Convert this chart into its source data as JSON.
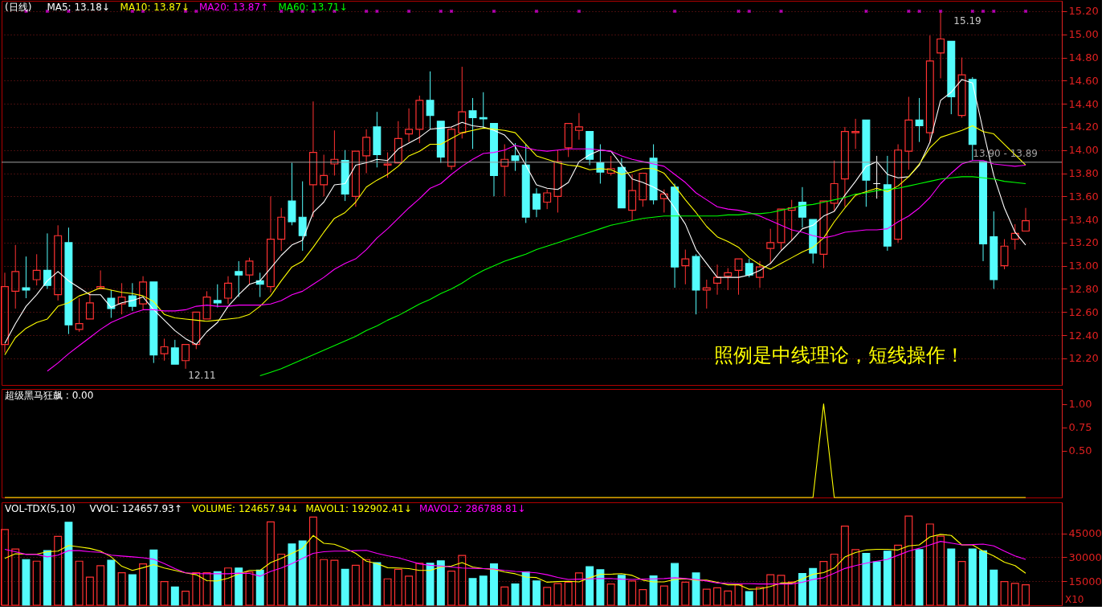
{
  "chart_data": [
    {
      "type": "candlestick",
      "title": "(日线)",
      "categories": [
        null,
        null,
        null,
        null,
        null,
        null,
        null,
        null,
        null,
        null,
        null,
        null,
        null,
        null,
        null,
        null,
        null,
        null,
        null,
        null,
        null,
        null,
        null,
        null,
        null,
        null,
        null,
        null,
        null,
        null,
        null,
        null,
        null,
        null,
        null,
        null,
        null,
        null,
        null,
        null,
        null,
        null,
        null,
        null,
        null,
        null,
        null,
        null,
        null,
        null,
        null,
        null,
        null,
        null,
        null,
        null,
        null,
        null,
        null,
        null,
        null,
        null,
        null,
        null,
        null,
        null,
        null,
        null,
        null,
        null,
        null,
        null,
        null,
        null,
        null,
        null,
        null,
        null,
        null,
        null,
        null,
        null,
        null,
        null,
        null,
        null,
        null,
        null,
        null,
        null,
        null,
        null,
        null,
        null,
        null,
        null,
        null
      ],
      "ohlc": [
        [
          12.32,
          12.94,
          12.25,
          12.82
        ],
        [
          12.78,
          13.18,
          12.63,
          12.95
        ],
        [
          12.81,
          13.08,
          12.72,
          12.79
        ],
        [
          12.88,
          13.1,
          12.83,
          12.96
        ],
        [
          12.96,
          13.28,
          12.8,
          12.83
        ],
        [
          12.75,
          13.35,
          12.7,
          13.26
        ],
        [
          13.2,
          13.33,
          12.41,
          12.49
        ],
        [
          12.45,
          12.72,
          12.43,
          12.5
        ],
        [
          12.54,
          12.77,
          12.54,
          12.68
        ],
        [
          12.8,
          12.96,
          12.8,
          12.82
        ],
        [
          12.72,
          12.79,
          12.55,
          12.63
        ],
        [
          12.67,
          12.85,
          12.58,
          12.73
        ],
        [
          12.74,
          12.85,
          12.61,
          12.65
        ],
        [
          12.67,
          12.91,
          12.62,
          12.86
        ],
        [
          12.86,
          12.86,
          12.16,
          12.23
        ],
        [
          12.24,
          12.37,
          12.18,
          12.3
        ],
        [
          12.29,
          12.36,
          12.15,
          12.15
        ],
        [
          12.18,
          12.32,
          12.11,
          12.32
        ],
        [
          12.32,
          12.6,
          12.28,
          12.6
        ],
        [
          12.54,
          12.78,
          12.53,
          12.73
        ],
        [
          12.7,
          12.84,
          12.64,
          12.68
        ],
        [
          12.72,
          12.91,
          12.67,
          12.85
        ],
        [
          12.95,
          13.04,
          12.73,
          12.92
        ],
        [
          12.92,
          13.07,
          12.84,
          13.04
        ],
        [
          12.87,
          12.94,
          12.73,
          12.84
        ],
        [
          12.82,
          13.6,
          12.77,
          13.23
        ],
        [
          13.23,
          13.5,
          13.13,
          13.42
        ],
        [
          13.56,
          13.89,
          13.35,
          13.38
        ],
        [
          13.42,
          13.73,
          13.13,
          13.26
        ],
        [
          13.7,
          14.42,
          13.42,
          13.98
        ],
        [
          13.7,
          13.96,
          13.6,
          13.78
        ],
        [
          13.88,
          14.17,
          13.78,
          13.92
        ],
        [
          13.91,
          14.0,
          13.56,
          13.62
        ],
        [
          13.6,
          13.99,
          13.51,
          13.99
        ],
        [
          13.95,
          14.18,
          13.8,
          14.11
        ],
        [
          14.2,
          14.33,
          13.85,
          13.96
        ],
        [
          13.87,
          13.98,
          13.76,
          13.88
        ],
        [
          13.89,
          14.25,
          13.89,
          14.1
        ],
        [
          14.14,
          14.36,
          14.07,
          14.18
        ],
        [
          14.18,
          14.47,
          14.06,
          14.43
        ],
        [
          14.43,
          14.68,
          14.18,
          14.3
        ],
        [
          14.25,
          14.25,
          13.89,
          13.94
        ],
        [
          13.86,
          14.2,
          13.83,
          14.18
        ],
        [
          14.15,
          14.72,
          14.1,
          14.33
        ],
        [
          14.34,
          14.45,
          14.01,
          14.28
        ],
        [
          14.28,
          14.5,
          14.19,
          14.27
        ],
        [
          14.23,
          14.23,
          13.6,
          13.78
        ],
        [
          13.86,
          14.05,
          13.6,
          13.92
        ],
        [
          13.95,
          14.06,
          13.82,
          13.91
        ],
        [
          13.87,
          14.05,
          13.37,
          13.42
        ],
        [
          13.62,
          13.67,
          13.42,
          13.49
        ],
        [
          13.55,
          13.66,
          13.49,
          13.63
        ],
        [
          13.6,
          14.0,
          13.46,
          13.9
        ],
        [
          14.02,
          14.23,
          13.94,
          14.23
        ],
        [
          14.17,
          14.32,
          14.09,
          14.2
        ],
        [
          14.16,
          14.16,
          13.87,
          13.92
        ],
        [
          13.89,
          14.05,
          13.71,
          13.81
        ],
        [
          13.8,
          13.95,
          13.78,
          13.84
        ],
        [
          13.85,
          13.93,
          13.49,
          13.5
        ],
        [
          13.48,
          13.79,
          13.39,
          13.65
        ],
        [
          13.57,
          13.8,
          13.51,
          13.8
        ],
        [
          13.93,
          14.05,
          13.53,
          13.57
        ],
        [
          13.58,
          13.66,
          13.46,
          13.62
        ],
        [
          13.68,
          13.71,
          12.81,
          12.99
        ],
        [
          13.0,
          13.14,
          12.84,
          13.06
        ],
        [
          13.08,
          13.1,
          12.58,
          12.79
        ],
        [
          12.79,
          12.88,
          12.63,
          12.81
        ],
        [
          12.85,
          13.01,
          12.75,
          12.9
        ],
        [
          12.91,
          12.98,
          12.79,
          12.94
        ],
        [
          12.96,
          13.06,
          12.75,
          13.06
        ],
        [
          13.02,
          13.06,
          12.9,
          12.92
        ],
        [
          12.9,
          13.04,
          12.81,
          12.99
        ],
        [
          13.15,
          13.32,
          13.02,
          13.2
        ],
        [
          13.2,
          13.49,
          13.14,
          13.49
        ],
        [
          13.48,
          13.57,
          13.22,
          13.5
        ],
        [
          13.55,
          13.68,
          13.33,
          13.42
        ],
        [
          13.4,
          13.41,
          13.02,
          13.11
        ],
        [
          13.1,
          13.57,
          12.98,
          13.56
        ],
        [
          13.54,
          13.91,
          13.47,
          13.71
        ],
        [
          13.75,
          14.2,
          13.51,
          14.16
        ],
        [
          14.15,
          14.27,
          14.01,
          14.16
        ],
        [
          14.26,
          14.26,
          13.51,
          13.74
        ],
        [
          13.71,
          13.95,
          13.58,
          13.71
        ],
        [
          13.7,
          13.95,
          13.13,
          13.17
        ],
        [
          13.23,
          14.05,
          13.2,
          14.0
        ],
        [
          13.99,
          14.46,
          13.83,
          14.26
        ],
        [
          14.26,
          14.45,
          14.07,
          14.21
        ],
        [
          14.15,
          14.99,
          14.06,
          14.77
        ],
        [
          14.84,
          15.19,
          14.62,
          14.96
        ],
        [
          14.94,
          14.94,
          14.31,
          14.46
        ],
        [
          14.3,
          14.8,
          14.28,
          14.65
        ],
        [
          14.61,
          14.63,
          13.91,
          14.05
        ],
        [
          13.9,
          13.9,
          13.04,
          13.19
        ],
        [
          13.25,
          13.47,
          12.8,
          12.88
        ],
        [
          13.0,
          13.23,
          12.97,
          13.17
        ],
        [
          13.23,
          13.36,
          13.14,
          13.28
        ],
        [
          13.3,
          13.5,
          13.29,
          13.39
        ]
      ],
      "colors": [
        "#ff3232",
        "#ff3232",
        "#54fcfc",
        "#ff3232",
        "#54fcfc",
        "#ff3232",
        "#54fcfc",
        "#ff3232",
        "#ff3232",
        "#ff3232",
        "#54fcfc",
        "#ff3232",
        "#54fcfc",
        "#ff3232",
        "#54fcfc",
        "#ff3232",
        "#54fcfc",
        "#ff3232",
        "#ff3232",
        "#ff3232",
        "#54fcfc",
        "#ff3232",
        "#54fcfc",
        "#ff3232",
        "#54fcfc",
        "#ff3232",
        "#ff3232",
        "#54fcfc",
        "#54fcfc",
        "#ff3232",
        "#ff3232",
        "#ff3232",
        "#54fcfc",
        "#ff3232",
        "#ff3232",
        "#54fcfc",
        "#ff3232",
        "#ff3232",
        "#ff3232",
        "#ff3232",
        "#54fcfc",
        "#54fcfc",
        "#ff3232",
        "#ff3232",
        "#54fcfc",
        "#54fcfc",
        "#54fcfc",
        "#ff3232",
        "#54fcfc",
        "#54fcfc",
        "#54fcfc",
        "#ff3232",
        "#ff3232",
        "#ff3232",
        "#ff3232",
        "#54fcfc",
        "#54fcfc",
        "#ff3232",
        "#54fcfc",
        "#ff3232",
        "#ff3232",
        "#54fcfc",
        "#ff3232",
        "#54fcfc",
        "#ff3232",
        "#54fcfc",
        "#ff3232",
        "#ff3232",
        "#ff3232",
        "#ff3232",
        "#54fcfc",
        "#ff3232",
        "#ff3232",
        "#ff3232",
        "#ff3232",
        "#54fcfc",
        "#54fcfc",
        "#ff3232",
        "#ff3232",
        "#ff3232",
        "#ff3232",
        "#54fcfc",
        "#ffffff",
        "#54fcfc",
        "#ff3232",
        "#ff3232",
        "#54fcfc",
        "#ff3232",
        "#ff3232",
        "#54fcfc",
        "#ff3232",
        "#54fcfc",
        "#54fcfc",
        "#54fcfc",
        "#ff3232",
        "#ff3232",
        "#ff3232"
      ],
      "series": [
        {
          "type": "line",
          "name": "MA5: 13.18↓",
          "color": "#ffffff",
          "values": [
            12.33,
            12.5,
            12.65,
            12.75,
            12.87,
            12.95,
            12.87,
            12.81,
            12.75,
            12.75,
            12.64,
            12.68,
            12.7,
            12.73,
            12.62,
            12.53,
            12.44,
            12.37,
            12.32,
            12.43,
            12.51,
            12.65,
            12.75,
            12.84,
            12.87,
            12.98,
            13.09,
            13.18,
            13.22,
            13.46,
            13.55,
            13.7,
            13.71,
            13.87,
            13.89,
            13.92,
            13.91,
            14.01,
            14.06,
            14.11,
            14.18,
            14.19,
            14.2,
            14.24,
            14.21,
            14.2,
            14.17,
            14.13,
            14.03,
            13.87,
            13.7,
            13.67,
            13.66,
            13.72,
            13.9,
            13.96,
            14.0,
            13.99,
            13.87,
            13.75,
            13.72,
            13.68,
            13.63,
            13.5,
            13.36,
            13.14,
            13.02,
            12.9,
            12.9,
            12.9,
            12.92,
            12.96,
            13.02,
            13.13,
            13.22,
            13.32,
            13.35,
            13.43,
            13.47,
            13.61,
            13.73,
            13.86,
            13.9,
            13.79,
            13.76,
            13.77,
            13.87,
            14.07,
            14.43,
            14.5,
            14.61,
            14.58,
            14.17,
            13.78,
            13.5,
            13.29,
            13.18
          ]
        },
        {
          "type": "line",
          "name": "MA10: 13.87↓",
          "color": "#ffff00",
          "values": [
            12.23,
            12.38,
            12.46,
            12.51,
            12.54,
            12.65,
            12.68,
            12.74,
            12.77,
            12.81,
            12.79,
            12.77,
            12.76,
            12.74,
            12.69,
            12.58,
            12.55,
            12.54,
            12.53,
            12.52,
            12.53,
            12.54,
            12.55,
            12.58,
            12.65,
            12.74,
            12.87,
            12.99,
            13.04,
            13.16,
            13.29,
            13.41,
            13.46,
            13.55,
            13.68,
            13.74,
            13.79,
            13.86,
            13.95,
            13.99,
            14.05,
            14.05,
            14.1,
            14.15,
            14.17,
            14.19,
            14.18,
            14.17,
            14.15,
            14.05,
            13.95,
            13.92,
            13.89,
            13.87,
            13.86,
            13.83,
            13.84,
            13.83,
            13.79,
            13.81,
            13.84,
            13.84,
            13.8,
            13.69,
            13.57,
            13.46,
            13.34,
            13.25,
            13.21,
            13.16,
            13.07,
            13.01,
            12.97,
            13.02,
            13.07,
            13.12,
            13.16,
            13.24,
            13.38,
            13.5,
            13.61,
            13.64,
            13.67,
            13.64,
            13.69,
            13.77,
            13.88,
            14.02,
            14.11,
            14.14,
            14.17,
            14.21,
            14.16,
            14.14,
            14.05,
            13.96,
            13.87
          ]
        },
        {
          "type": "line",
          "name": "MA20: 13.87↑",
          "color": "#ff00ff",
          "values": [
            null,
            null,
            null,
            null,
            12.09,
            12.16,
            12.24,
            12.31,
            12.38,
            12.45,
            12.51,
            12.55,
            12.59,
            12.62,
            12.62,
            12.61,
            12.61,
            12.62,
            12.65,
            12.66,
            12.65,
            12.65,
            12.66,
            12.66,
            12.66,
            12.67,
            12.7,
            12.75,
            12.78,
            12.84,
            12.9,
            12.97,
            13.02,
            13.06,
            13.14,
            13.24,
            13.32,
            13.41,
            13.5,
            13.58,
            13.67,
            13.71,
            13.79,
            13.86,
            13.92,
            13.97,
            13.98,
            14.0,
            14.04,
            14.02,
            14.0,
            13.99,
            14.0,
            14.01,
            14.01,
            14.01,
            14.0,
            13.99,
            13.95,
            13.92,
            13.9,
            13.88,
            13.86,
            13.79,
            13.72,
            13.63,
            13.57,
            13.51,
            13.49,
            13.48,
            13.46,
            13.43,
            13.39,
            13.35,
            13.31,
            13.29,
            13.26,
            13.24,
            13.26,
            13.29,
            13.3,
            13.31,
            13.31,
            13.32,
            13.38,
            13.43,
            13.5,
            13.59,
            13.71,
            13.8,
            13.88,
            13.91,
            13.91,
            13.88,
            13.87,
            13.86,
            13.87
          ]
        },
        {
          "type": "line",
          "name": "MA60: 13.71↓",
          "color": "#00ff00",
          "values": [
            null,
            null,
            null,
            null,
            null,
            null,
            null,
            null,
            null,
            null,
            null,
            null,
            null,
            null,
            null,
            null,
            null,
            null,
            null,
            null,
            null,
            null,
            null,
            null,
            12.05,
            12.08,
            12.11,
            12.15,
            12.19,
            12.23,
            12.27,
            12.31,
            12.35,
            12.39,
            12.44,
            12.48,
            12.53,
            12.57,
            12.62,
            12.67,
            12.71,
            12.76,
            12.8,
            12.85,
            12.91,
            12.96,
            13.0,
            13.04,
            13.07,
            13.1,
            13.14,
            13.17,
            13.2,
            13.23,
            13.26,
            13.29,
            13.32,
            13.35,
            13.37,
            13.39,
            13.41,
            13.42,
            13.43,
            13.43,
            13.43,
            13.43,
            13.43,
            13.43,
            13.44,
            13.44,
            13.45,
            13.45,
            13.46,
            13.48,
            13.5,
            13.52,
            13.53,
            13.55,
            13.57,
            13.59,
            13.62,
            13.63,
            13.65,
            13.66,
            13.67,
            13.69,
            13.71,
            13.73,
            13.75,
            13.76,
            13.77,
            13.77,
            13.76,
            13.75,
            13.73,
            13.72,
            13.71
          ]
        },
        {
          "type": "scatter",
          "color": "#ff00ff",
          "marker": "cross",
          "values": [
            null,
            null,
            15.2,
            null,
            15.2,
            null,
            15.2,
            null,
            null,
            null,
            null,
            null,
            15.2,
            15.2,
            null,
            null,
            null,
            15.2,
            15.2,
            null,
            null,
            null,
            null,
            null,
            null,
            null,
            15.2,
            15.2,
            15.2,
            15.2,
            null,
            15.2,
            null,
            null,
            15.2,
            15.2,
            null,
            null,
            15.2,
            null,
            null,
            15.2,
            15.2,
            null,
            null,
            null,
            15.2,
            null,
            null,
            null,
            15.2,
            null,
            null,
            null,
            15.2,
            null,
            null,
            null,
            null,
            null,
            null,
            null,
            null,
            15.2,
            null,
            null,
            null,
            null,
            null,
            15.2,
            15.2,
            null,
            null,
            15.2,
            null,
            null,
            null,
            null,
            null,
            null,
            null,
            15.2,
            null,
            null,
            null,
            15.2,
            15.2,
            null,
            15.2,
            null,
            null,
            15.2,
            15.2,
            15.2,
            null,
            null,
            15.2
          ]
        }
      ],
      "ylim": [
        11.97,
        15.29
      ],
      "yticks": [
        {
          "value": 12.2,
          "label": "12.20"
        },
        {
          "value": 12.4,
          "label": "12.40"
        },
        {
          "value": 12.6,
          "label": "12.60"
        },
        {
          "value": 12.8,
          "label": "12.80"
        },
        {
          "value": 13.0,
          "label": "13.00"
        },
        {
          "value": 13.2,
          "label": "13.20"
        },
        {
          "value": 13.4,
          "label": "13.40"
        },
        {
          "value": 13.6,
          "label": "13.60"
        },
        {
          "value": 13.8,
          "label": "13.80"
        },
        {
          "value": 14.0,
          "label": "14.00"
        },
        {
          "value": 14.2,
          "label": "14.20"
        },
        {
          "value": 14.4,
          "label": "14.40"
        },
        {
          "value": 14.6,
          "label": "14.60"
        },
        {
          "value": 14.8,
          "label": "14.80"
        },
        {
          "value": 15.0,
          "label": "15.00"
        },
        {
          "value": 15.2,
          "label": "15.20"
        }
      ],
      "grid": "y",
      "annotations": [
        "12.11",
        "15.19",
        "照例是中线理论，短线操作！"
      ],
      "ref_lines": [
        {
          "axis": "y",
          "value": 13.895,
          "label": "13.90 - 13.89",
          "color": "#a0a0a0"
        }
      ]
    },
    {
      "type": "line",
      "title": "超级黑马狂飙 : 0.00",
      "categories": [
        null,
        null,
        null,
        null,
        null,
        null,
        null,
        null,
        null,
        null,
        null,
        null,
        null,
        null,
        null,
        null,
        null,
        null,
        null,
        null,
        null,
        null,
        null,
        null,
        null,
        null,
        null,
        null,
        null,
        null,
        null,
        null,
        null,
        null,
        null,
        null,
        null,
        null,
        null,
        null,
        null,
        null,
        null,
        null,
        null,
        null,
        null,
        null,
        null,
        null,
        null,
        null,
        null,
        null,
        null,
        null,
        null,
        null,
        null,
        null,
        null,
        null,
        null,
        null,
        null,
        null,
        null,
        null,
        null,
        null,
        null,
        null,
        null,
        null,
        null,
        null,
        null,
        null,
        null,
        null,
        null,
        null,
        null,
        null,
        null,
        null,
        null,
        null,
        null,
        null,
        null,
        null,
        null,
        null,
        null,
        null,
        null
      ],
      "series": [
        {
          "color": "#ffff00",
          "values": [
            0,
            0,
            0,
            0,
            0,
            0,
            0,
            0,
            0,
            0,
            0,
            0,
            0,
            0,
            0,
            0,
            0,
            0,
            0,
            0,
            0,
            0,
            0,
            0,
            0,
            0,
            0,
            0,
            0,
            0,
            0,
            0,
            0,
            0,
            0,
            0,
            0,
            0,
            0,
            0,
            0,
            0,
            0,
            0,
            0,
            0,
            0,
            0,
            0,
            0,
            0,
            0,
            0,
            0,
            0,
            0,
            0,
            0,
            0,
            0,
            0,
            0,
            0,
            0,
            0,
            0,
            0,
            0,
            0,
            0,
            0,
            0,
            0,
            0,
            0,
            0,
            0,
            1,
            0,
            0,
            0,
            0,
            0,
            0,
            0,
            0,
            0,
            0,
            0,
            0,
            0,
            0,
            0,
            0,
            0,
            0,
            0
          ]
        }
      ],
      "ylim": [
        0,
        1.16
      ],
      "yticks": [
        {
          "value": 0.5,
          "label": "0.50"
        },
        {
          "value": 0.75,
          "label": "0.75"
        },
        {
          "value": 1,
          "label": "1.00"
        }
      ]
    },
    {
      "type": "bar",
      "title": "VOL-TDX(5,10)",
      "ylabel": "X10",
      "categories": [
        null,
        null,
        null,
        null,
        null,
        null,
        null,
        null,
        null,
        null,
        null,
        null,
        null,
        null,
        null,
        null,
        null,
        null,
        null,
        null,
        null,
        null,
        null,
        null,
        null,
        null,
        null,
        null,
        null,
        null,
        null,
        null,
        null,
        null,
        null,
        null,
        null,
        null,
        null,
        null,
        null,
        null,
        null,
        null,
        null,
        null,
        null,
        null,
        null,
        null,
        null,
        null,
        null,
        null,
        null,
        null,
        null,
        null,
        null,
        null,
        null,
        null,
        null,
        null,
        null,
        null,
        null,
        null,
        null,
        null,
        null,
        null,
        null,
        null,
        null,
        null,
        null,
        null,
        null,
        null,
        null,
        null,
        null,
        null,
        null,
        null,
        null,
        null,
        null,
        null,
        null,
        null,
        null,
        null,
        null,
        null,
        null
      ],
      "values": [
        47400,
        35200,
        28600,
        27600,
        34200,
        43100,
        52000,
        27600,
        17600,
        24800,
        28200,
        20300,
        19100,
        25900,
        34600,
        14800,
        11400,
        8800,
        20300,
        20300,
        21000,
        23300,
        23300,
        20800,
        22000,
        52200,
        32000,
        38400,
        40300,
        55200,
        28600,
        28200,
        22500,
        25000,
        28600,
        26700,
        16500,
        22500,
        18200,
        26300,
        26300,
        27800,
        21400,
        31200,
        16700,
        18200,
        25900,
        11400,
        13300,
        20800,
        15200,
        11100,
        13500,
        14400,
        20200,
        24100,
        22200,
        13300,
        18700,
        15200,
        9800,
        18300,
        12000,
        26100,
        14400,
        20200,
        10000,
        10900,
        8900,
        12800,
        8500,
        11100,
        19100,
        18700,
        14600,
        19800,
        23000,
        27400,
        32000,
        49600,
        34800,
        32400,
        27200,
        33900,
        37600,
        55900,
        34800,
        50900,
        43300,
        35200,
        27400,
        35200,
        34100,
        22000,
        14800,
        13700,
        12800
      ],
      "colors": [
        "#ff3232",
        "#ff3232",
        "#54fcfc",
        "#ff3232",
        "#54fcfc",
        "#ff3232",
        "#54fcfc",
        "#ff3232",
        "#ff3232",
        "#ff3232",
        "#54fcfc",
        "#ff3232",
        "#54fcfc",
        "#ff3232",
        "#54fcfc",
        "#ff3232",
        "#54fcfc",
        "#ff3232",
        "#ff3232",
        "#ff3232",
        "#54fcfc",
        "#ff3232",
        "#54fcfc",
        "#ff3232",
        "#54fcfc",
        "#ff3232",
        "#ff3232",
        "#54fcfc",
        "#54fcfc",
        "#ff3232",
        "#ff3232",
        "#ff3232",
        "#54fcfc",
        "#ff3232",
        "#ff3232",
        "#54fcfc",
        "#ff3232",
        "#ff3232",
        "#ff3232",
        "#ff3232",
        "#54fcfc",
        "#54fcfc",
        "#ff3232",
        "#ff3232",
        "#54fcfc",
        "#54fcfc",
        "#54fcfc",
        "#ff3232",
        "#54fcfc",
        "#54fcfc",
        "#54fcfc",
        "#ff3232",
        "#ff3232",
        "#ff3232",
        "#ff3232",
        "#54fcfc",
        "#54fcfc",
        "#ff3232",
        "#54fcfc",
        "#ff3232",
        "#ff3232",
        "#54fcfc",
        "#ff3232",
        "#54fcfc",
        "#ff3232",
        "#54fcfc",
        "#ff3232",
        "#ff3232",
        "#ff3232",
        "#ff3232",
        "#54fcfc",
        "#ff3232",
        "#ff3232",
        "#ff3232",
        "#ff3232",
        "#54fcfc",
        "#54fcfc",
        "#ff3232",
        "#ff3232",
        "#ff3232",
        "#ff3232",
        "#54fcfc",
        "#54fcfc",
        "#54fcfc",
        "#ff3232",
        "#ff3232",
        "#54fcfc",
        "#ff3232",
        "#ff3232",
        "#54fcfc",
        "#ff3232",
        "#54fcfc",
        "#54fcfc",
        "#54fcfc",
        "#ff3232",
        "#ff3232",
        "#ff3232"
      ],
      "series": [
        {
          "type": "line",
          "name": "MAVOL1: 192902.41↓",
          "color": "#ffff00",
          "values": [
            29300,
            32200,
            32000,
            32000,
            33500,
            33900,
            37400,
            36500,
            35600,
            33900,
            30300,
            24400,
            21800,
            23500,
            25400,
            23300,
            21800,
            20300,
            19100,
            15400,
            15200,
            16900,
            19700,
            21800,
            21800,
            26700,
            29300,
            32500,
            35600,
            43700,
            38800,
            38200,
            35600,
            32500,
            27600,
            26100,
            23500,
            23300,
            22900,
            21800,
            21800,
            23900,
            24600,
            26700,
            23900,
            22900,
            22500,
            20800,
            19700,
            17600,
            17300,
            14400,
            14800,
            15000,
            14600,
            17200,
            19400,
            19400,
            19800,
            18700,
            15700,
            14600,
            14600,
            16100,
            16500,
            15700,
            15700,
            14400,
            12800,
            12800,
            10000,
            10200,
            11700,
            13900,
            13900,
            16500,
            19400,
            20400,
            23300,
            30200,
            33000,
            34600,
            35000,
            35000,
            34600,
            37200,
            37800,
            42800,
            44400,
            43700,
            37800,
            37800,
            33900,
            30900,
            27000,
            24800,
            20000
          ]
        },
        {
          "type": "line",
          "name": "MAVOL2: 286788.81↓",
          "color": "#ff00ff",
          "values": [
            35000,
            33500,
            31800,
            31800,
            30300,
            31400,
            34200,
            34200,
            33500,
            33100,
            31400,
            30800,
            30300,
            29700,
            28800,
            26100,
            22900,
            20300,
            19900,
            19700,
            19700,
            19700,
            20100,
            19900,
            18200,
            21200,
            23300,
            26100,
            29300,
            32500,
            33500,
            33900,
            33900,
            34200,
            34400,
            32500,
            31000,
            29700,
            27800,
            25900,
            25000,
            24600,
            23900,
            23300,
            23100,
            22900,
            22700,
            21800,
            21200,
            20800,
            20300,
            19100,
            17400,
            16100,
            16300,
            16500,
            16700,
            16700,
            16300,
            16100,
            16300,
            16500,
            16700,
            17200,
            16700,
            16100,
            15200,
            13900,
            13700,
            13500,
            13500,
            13300,
            13300,
            13300,
            13300,
            14400,
            16100,
            17200,
            20000,
            23000,
            24800,
            26300,
            27600,
            28700,
            31300,
            33900,
            35700,
            37800,
            40000,
            38900,
            37800,
            38000,
            38300,
            37200,
            33900,
            30900,
            28700
          ]
        }
      ],
      "annotations": [
        "VVOL: 124657.93↑",
        "VOLUME: 124657.94↓"
      ],
      "ylim": [
        0,
        64500
      ],
      "yticks": [
        15000,
        30000,
        45000
      ],
      "grid": "y"
    }
  ]
}
